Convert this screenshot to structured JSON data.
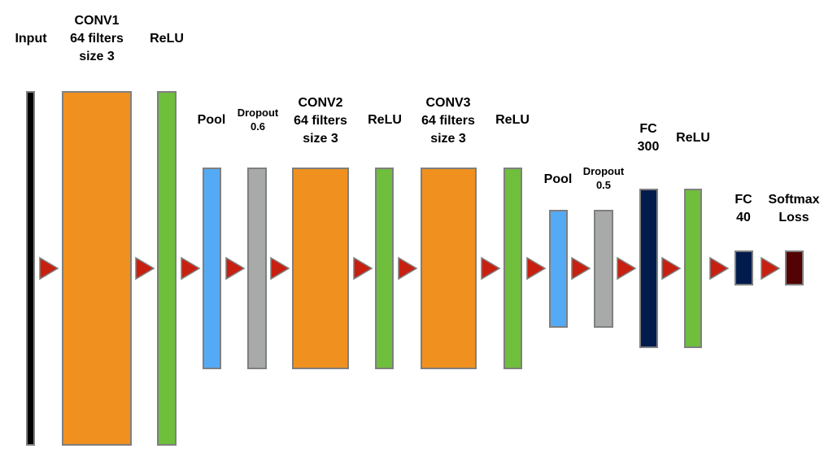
{
  "colors": {
    "input": "#000000",
    "conv": "#f0901e",
    "relu": "#6fbe3c",
    "pool": "#55aaf5",
    "dropout": "#a8aaa9",
    "fc": "#001b4c",
    "softmax": "#540304",
    "arrow": "#c82010",
    "border": "#7f7f7f"
  },
  "layers": [
    {
      "id": "input",
      "type": "input",
      "label": [
        "Input"
      ]
    },
    {
      "id": "conv1",
      "type": "conv",
      "label": [
        "CONV1",
        "64 filters",
        "size 3"
      ]
    },
    {
      "id": "relu1",
      "type": "relu",
      "label": [
        "ReLU"
      ]
    },
    {
      "id": "pool1",
      "type": "pool",
      "label": [
        "Pool"
      ]
    },
    {
      "id": "dropout1",
      "type": "dropout",
      "label": [
        "Dropout",
        "0.6"
      ]
    },
    {
      "id": "conv2",
      "type": "conv",
      "label": [
        "CONV2",
        "64 filters",
        "size 3"
      ]
    },
    {
      "id": "relu2",
      "type": "relu",
      "label": [
        "ReLU"
      ]
    },
    {
      "id": "conv3",
      "type": "conv",
      "label": [
        "CONV3",
        "64 filters",
        "size 3"
      ]
    },
    {
      "id": "relu3",
      "type": "relu",
      "label": [
        "ReLU"
      ]
    },
    {
      "id": "pool2",
      "type": "pool",
      "label": [
        "Pool"
      ]
    },
    {
      "id": "dropout2",
      "type": "dropout",
      "label": [
        "Dropout",
        "0.5"
      ]
    },
    {
      "id": "fc300",
      "type": "fc",
      "label": [
        "FC",
        "300"
      ]
    },
    {
      "id": "relu4",
      "type": "relu",
      "label": [
        "ReLU"
      ]
    },
    {
      "id": "fc40",
      "type": "fc",
      "label": [
        "FC",
        "40"
      ]
    },
    {
      "id": "softmax",
      "type": "softmax",
      "label": [
        "Softmax",
        "Loss"
      ]
    }
  ]
}
